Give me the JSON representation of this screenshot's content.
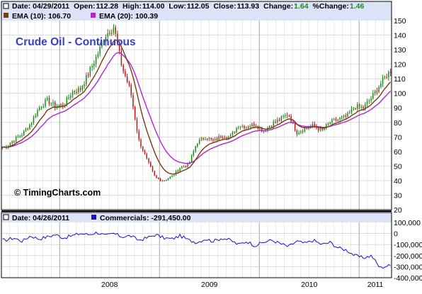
{
  "header": {
    "date_label": "Date: 04/29/2011",
    "open_label": "Open:",
    "open_value": "112.28",
    "high_label": "High:",
    "high_value": "114.00",
    "low_label": "Low:",
    "low_value": "112.05",
    "close_label": "Close:",
    "close_value": "113.93",
    "change_label": "Change:",
    "change_value": "1.64",
    "pct_change_label": "%Change:",
    "pct_change_value": "1.46",
    "ema10_label": "EMA (10): 106.70",
    "ema20_label": "EMA (20): 100.39"
  },
  "lower_header": {
    "date_label": "Date: 04/26/2011",
    "series_label": "Commercials: -291,450.00"
  },
  "colors": {
    "header_bg": "#dde3f7",
    "up_bar": "#1e8a1e",
    "down_bar": "#c01818",
    "ema10": "#7a3b12",
    "ema20": "#b026d0",
    "commercials": "#1414d0",
    "title": "#3a3fc4",
    "change_positive": "#1e8a1e"
  },
  "chart_data": [
    {
      "type": "candlestick",
      "title": "Crude Oil - Continuous",
      "watermark": "© TimingCharts.com",
      "ylim": [
        20,
        150
      ],
      "y_ticks": [
        20,
        30,
        40,
        50,
        60,
        70,
        80,
        90,
        100,
        110,
        120,
        130,
        140,
        150
      ],
      "x_ticks": [
        "2008",
        "2009",
        "2010",
        "2011"
      ],
      "grid": true,
      "series": [
        {
          "name": "EMA (10)",
          "type": "line"
        },
        {
          "name": "EMA (20)",
          "type": "line"
        }
      ],
      "close_points": [
        [
          "2007-06",
          63
        ],
        [
          "2007-07",
          68
        ],
        [
          "2007-08",
          72
        ],
        [
          "2007-09",
          79
        ],
        [
          "2007-10",
          90
        ],
        [
          "2007-11",
          95
        ],
        [
          "2007-12",
          91
        ],
        [
          "2008-01",
          92
        ],
        [
          "2008-02",
          101
        ],
        [
          "2008-03",
          103
        ],
        [
          "2008-04",
          114
        ],
        [
          "2008-05",
          126
        ],
        [
          "2008-06",
          140
        ],
        [
          "2008-07",
          146
        ],
        [
          "2008-08",
          118
        ],
        [
          "2008-09",
          102
        ],
        [
          "2008-10",
          68
        ],
        [
          "2008-11",
          54
        ],
        [
          "2008-12",
          42
        ],
        [
          "2009-01",
          40
        ],
        [
          "2009-02",
          43
        ],
        [
          "2009-03",
          49
        ],
        [
          "2009-04",
          51
        ],
        [
          "2009-05",
          66
        ],
        [
          "2009-06",
          70
        ],
        [
          "2009-07",
          67
        ],
        [
          "2009-08",
          71
        ],
        [
          "2009-09",
          70
        ],
        [
          "2009-10",
          78
        ],
        [
          "2009-11",
          77
        ],
        [
          "2009-12",
          79
        ],
        [
          "2010-01",
          74
        ],
        [
          "2010-02",
          79
        ],
        [
          "2010-03",
          82
        ],
        [
          "2010-04",
          86
        ],
        [
          "2010-05",
          73
        ],
        [
          "2010-06",
          76
        ],
        [
          "2010-07",
          78
        ],
        [
          "2010-08",
          74
        ],
        [
          "2010-09",
          80
        ],
        [
          "2010-10",
          82
        ],
        [
          "2010-11",
          84
        ],
        [
          "2010-12",
          91
        ],
        [
          "2011-01",
          90
        ],
        [
          "2011-02",
          97
        ],
        [
          "2011-03",
          106
        ],
        [
          "2011-04",
          113.93
        ]
      ]
    },
    {
      "type": "line",
      "ylim": [
        -400000,
        100000
      ],
      "y_ticks": [
        100000,
        0,
        -100000,
        -200000,
        -300000,
        -400000
      ],
      "y_tick_labels": [
        "100,000",
        "0",
        "-100,000",
        "-200,000",
        "-300,000",
        "-400,000"
      ],
      "grid": true,
      "series": [
        {
          "name": "Commercials",
          "points": [
            [
              "2007-06",
              -60000
            ],
            [
              "2007-07",
              -40000
            ],
            [
              "2007-08",
              -70000
            ],
            [
              "2007-09",
              -20000
            ],
            [
              "2007-10",
              -50000
            ],
            [
              "2007-11",
              -30000
            ],
            [
              "2007-12",
              -10000
            ],
            [
              "2008-01",
              -40000
            ],
            [
              "2008-02",
              -20000
            ],
            [
              "2008-03",
              0
            ],
            [
              "2008-04",
              -10000
            ],
            [
              "2008-05",
              10000
            ],
            [
              "2008-06",
              -20000
            ],
            [
              "2008-07",
              0
            ],
            [
              "2008-08",
              -30000
            ],
            [
              "2008-09",
              -20000
            ],
            [
              "2008-10",
              -60000
            ],
            [
              "2008-11",
              -40000
            ],
            [
              "2008-12",
              -10000
            ],
            [
              "2009-01",
              -40000
            ],
            [
              "2009-02",
              -50000
            ],
            [
              "2009-03",
              -20000
            ],
            [
              "2009-04",
              -60000
            ],
            [
              "2009-05",
              -80000
            ],
            [
              "2009-06",
              -50000
            ],
            [
              "2009-07",
              -70000
            ],
            [
              "2009-08",
              -40000
            ],
            [
              "2009-09",
              -60000
            ],
            [
              "2009-10",
              -100000
            ],
            [
              "2009-11",
              -70000
            ],
            [
              "2009-12",
              -110000
            ],
            [
              "2010-01",
              -80000
            ],
            [
              "2010-02",
              -60000
            ],
            [
              "2010-03",
              -90000
            ],
            [
              "2010-04",
              -120000
            ],
            [
              "2010-05",
              -70000
            ],
            [
              "2010-06",
              -90000
            ],
            [
              "2010-07",
              -60000
            ],
            [
              "2010-08",
              -100000
            ],
            [
              "2010-09",
              -80000
            ],
            [
              "2010-10",
              -130000
            ],
            [
              "2010-11",
              -150000
            ],
            [
              "2010-12",
              -200000
            ],
            [
              "2011-01",
              -220000
            ],
            [
              "2011-02",
              -200000
            ],
            [
              "2011-03",
              -310000
            ],
            [
              "2011-04",
              -291450
            ]
          ]
        }
      ]
    }
  ]
}
